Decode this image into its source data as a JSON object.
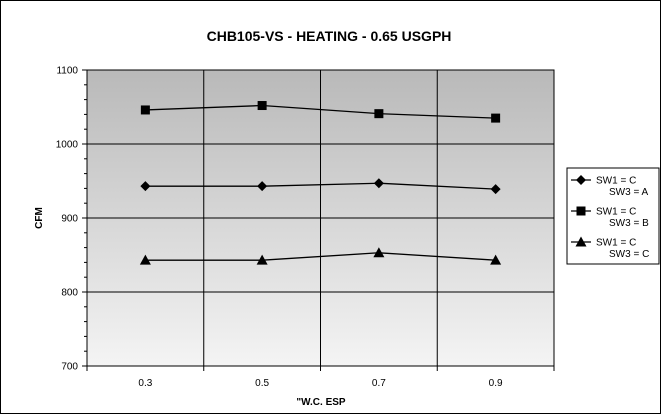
{
  "chart_data": {
    "type": "line",
    "title": "CHB105-VS - HEATING - 0.65 USGPH",
    "xlabel": "\"W.C. ESP",
    "ylabel": "CFM",
    "categories": [
      "0.3",
      "0.5",
      "0.7",
      "0.9"
    ],
    "ylim": [
      700,
      1100
    ],
    "yticks": [
      "700",
      "800",
      "900",
      "1000",
      "1100"
    ],
    "grid": true,
    "legend_position": "right",
    "series": [
      {
        "name": "SW1 = C SW3 = A",
        "legend_lines": [
          "SW1 = C",
          "SW3 = A"
        ],
        "marker": "diamond",
        "values": [
          943,
          943,
          947,
          939
        ]
      },
      {
        "name": "SW1 = C SW3 = B",
        "legend_lines": [
          "SW1 = C",
          "SW3 = B"
        ],
        "marker": "square",
        "values": [
          1046,
          1052,
          1041,
          1035
        ]
      },
      {
        "name": "SW1 = C SW3 = C",
        "legend_lines": [
          "SW1 = C",
          "SW3 = C"
        ],
        "marker": "triangle",
        "values": [
          843,
          843,
          853,
          843
        ]
      }
    ]
  }
}
